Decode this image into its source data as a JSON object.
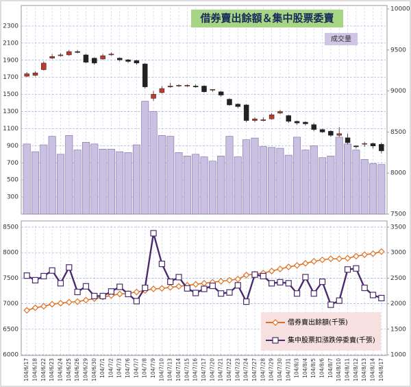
{
  "chart_data": [
    {
      "type": "candlestick",
      "title": "借券賣出餘額＆集中股票委賣",
      "annotation": "成交量",
      "ylim": [
        100,
        2500
      ],
      "yticks": [
        300,
        500,
        700,
        900,
        1100,
        1300,
        1500,
        1700,
        1900,
        2100,
        2300
      ],
      "y2lim": [
        7500,
        10000
      ],
      "y2ticks": [
        7500,
        8000,
        8500,
        9000,
        9500,
        10000
      ],
      "grid": true,
      "volume": {
        "color": "#c9c0e2",
        "values": [
          920,
          830,
          910,
          1010,
          800,
          1020,
          850,
          940,
          920,
          860,
          860,
          830,
          820,
          910,
          1420,
          1300,
          1020,
          1010,
          820,
          780,
          800,
          770,
          720,
          780,
          1010,
          770,
          970,
          990,
          890,
          880,
          870,
          790,
          1000,
          850,
          900,
          760,
          780,
          1000,
          920,
          850,
          740,
          690,
          680
        ]
      },
      "candles": {
        "axis": "y2",
        "up_color": "#c0392b",
        "down_color": "#222222",
        "open": [
          9180,
          9190,
          9260,
          9400,
          9430,
          9440,
          9480,
          9440,
          9400,
          9390,
          9440,
          9400,
          9380,
          9370,
          9330,
          8910,
          8980,
          9050,
          9060,
          9060,
          9060,
          9060,
          9010,
          8990,
          8900,
          8840,
          8830,
          8640,
          8640,
          8660,
          8730,
          8700,
          8630,
          8620,
          8590,
          8530,
          8510,
          8460,
          8430,
          8330,
          8360,
          8360,
          8350
        ],
        "high": [
          9230,
          9240,
          9360,
          9450,
          9460,
          9500,
          9500,
          9450,
          9410,
          9450,
          9470,
          9410,
          9390,
          9380,
          9340,
          9000,
          9060,
          9100,
          9080,
          9080,
          9080,
          9070,
          9020,
          9000,
          8910,
          8850,
          8840,
          8680,
          8680,
          8730,
          8770,
          8710,
          8640,
          8630,
          8610,
          8540,
          8520,
          8560,
          8480,
          8340,
          8380,
          8370,
          8370
        ],
        "high_note": null,
        "low": [
          9170,
          9180,
          9250,
          9390,
          9420,
          9430,
          9460,
          9340,
          9320,
          9380,
          9430,
          9360,
          9340,
          9320,
          9030,
          8880,
          8970,
          9040,
          9050,
          9050,
          9040,
          8980,
          8990,
          8930,
          8820,
          8790,
          8620,
          8620,
          8630,
          8650,
          8720,
          8610,
          8590,
          8580,
          8510,
          8490,
          8440,
          8440,
          8350,
          8300,
          8320,
          8300,
          8240
        ],
        "close": [
          9210,
          9220,
          9340,
          9420,
          9440,
          9480,
          9470,
          9350,
          9340,
          9430,
          9450,
          9380,
          9360,
          9340,
          9050,
          8960,
          9030,
          9060,
          9070,
          9070,
          9050,
          8990,
          9020,
          8950,
          8830,
          8810,
          8640,
          8660,
          8650,
          8710,
          8750,
          8630,
          8610,
          8600,
          8530,
          8500,
          8460,
          8480,
          8370,
          8320,
          8360,
          8330,
          8270
        ]
      }
    },
    {
      "type": "line",
      "categories": [
        "104/6/17",
        "104/6/18",
        "104/6/22",
        "104/6/23",
        "104/6/24",
        "104/6/25",
        "104/6/26",
        "104/6/29",
        "104/6/30",
        "104/7/1",
        "104/7/2",
        "104/7/3",
        "104/7/6",
        "104/7/7",
        "104/7/8",
        "104/7/9",
        "104/7/10",
        "104/7/13",
        "104/7/14",
        "104/7/15",
        "104/7/16",
        "104/7/17",
        "104/7/20",
        "104/7/21",
        "104/7/22",
        "104/7/23",
        "104/7/24",
        "104/7/27",
        "104/7/28",
        "104/7/29",
        "104/7/30",
        "104/7/31",
        "104/8/3",
        "104/8/4",
        "104/8/5",
        "104/8/6",
        "104/8/7",
        "104/8/10",
        "104/8/11",
        "104/8/12",
        "104/8/13",
        "104/8/14",
        "104/8/17"
      ],
      "ylim": [
        6000,
        8500
      ],
      "yticks": [
        6000,
        6500,
        7000,
        7500,
        8000,
        8500
      ],
      "y2lim": [
        1000,
        3500
      ],
      "y2ticks": [
        1000,
        1500,
        2000,
        2500,
        3000,
        3500
      ],
      "grid": true,
      "series": [
        {
          "name": "借券賣出餘額(千張)",
          "color": "#e07020",
          "marker": "diamond",
          "axis": "y2",
          "values": [
            1870,
            1920,
            1950,
            1990,
            2010,
            2030,
            2040,
            2070,
            2100,
            2130,
            2160,
            2190,
            2200,
            2230,
            2260,
            2290,
            2300,
            2320,
            2340,
            2360,
            2380,
            2400,
            2420,
            2440,
            2460,
            2480,
            2560,
            2580,
            2600,
            2640,
            2680,
            2720,
            2750,
            2790,
            2830,
            2860,
            2880,
            2880,
            2890,
            2930,
            2960,
            2980,
            3020
          ]
        },
        {
          "name": "集中股票扣漲跌停委賣(千張)",
          "color": "#4a2a6e",
          "marker": "square",
          "values": [
            7550,
            7460,
            7540,
            7650,
            7400,
            7710,
            7230,
            7340,
            7150,
            7150,
            7240,
            7330,
            7190,
            7050,
            7310,
            8380,
            7780,
            7430,
            7520,
            7300,
            7210,
            7290,
            7350,
            7200,
            7220,
            7360,
            7040,
            7570,
            7540,
            7400,
            7420,
            7400,
            7200,
            7520,
            7200,
            7430,
            6980,
            7060,
            7670,
            7690,
            7310,
            7170,
            7110
          ]
        }
      ]
    }
  ]
}
